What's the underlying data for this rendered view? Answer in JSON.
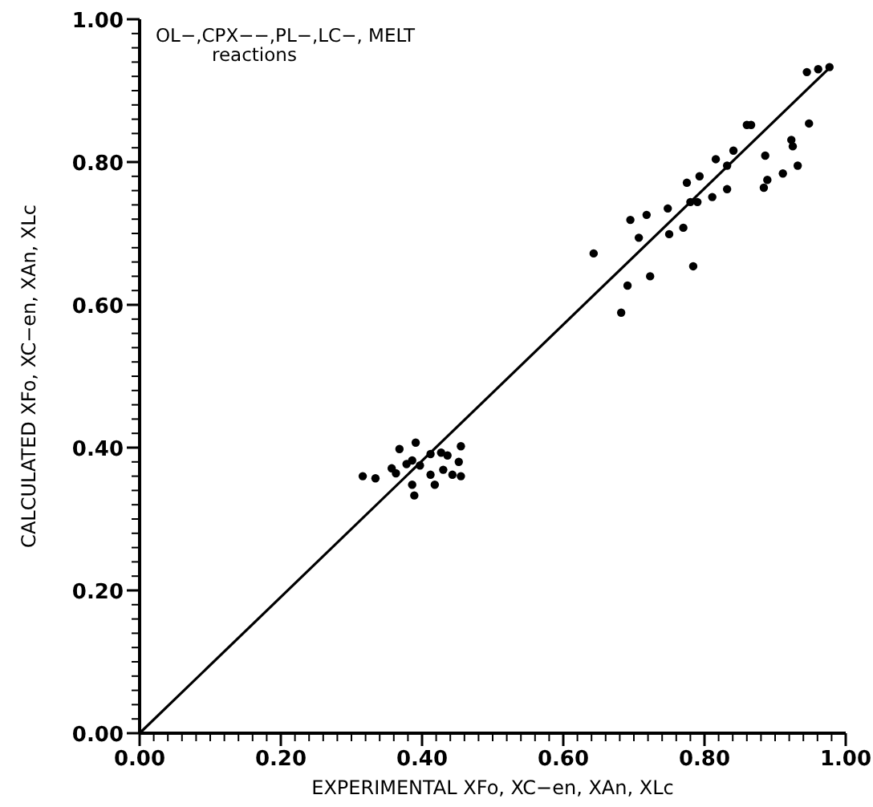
{
  "chart_data": {
    "type": "scatter",
    "title": "OL−,CPX−−,PL−,LC−,   MELT\nreactions",
    "xlabel": "EXPERIMENTAL  XFo,  XC−en,  XAn,  XLc",
    "ylabel": "CALCULATED  XFo,  XC−en,  XAn,  XLc",
    "xlim": [
      0,
      1
    ],
    "ylim": [
      0,
      1
    ],
    "xticks": [
      {
        "value": 0,
        "label": "0.00"
      },
      {
        "value": 0.2,
        "label": "0.20"
      },
      {
        "value": 0.4,
        "label": "0.40"
      },
      {
        "value": 0.6,
        "label": "0.60"
      },
      {
        "value": 0.8,
        "label": "0.80"
      },
      {
        "value": 1,
        "label": "1.00"
      }
    ],
    "yticks": [
      {
        "value": 0,
        "label": "0.00"
      },
      {
        "value": 0.2,
        "label": "0.20"
      },
      {
        "value": 0.4,
        "label": "0.40"
      },
      {
        "value": 0.6,
        "label": "0.60"
      },
      {
        "value": 0.8,
        "label": "0.80"
      },
      {
        "value": 1,
        "label": "1.00"
      }
    ],
    "grid": false,
    "series": [
      {
        "color": "#000000",
        "marker": "circle",
        "x": [
          0.316,
          0.334,
          0.368,
          0.391,
          0.357,
          0.363,
          0.378,
          0.386,
          0.397,
          0.412,
          0.427,
          0.455,
          0.452,
          0.43,
          0.443,
          0.455,
          0.412,
          0.418,
          0.389,
          0.386,
          0.436,
          0.643,
          0.682,
          0.691,
          0.723,
          0.784,
          0.707,
          0.695,
          0.718,
          0.748,
          0.75,
          0.77,
          0.78,
          0.79,
          0.811,
          0.832,
          0.775,
          0.793,
          0.816,
          0.832,
          0.841,
          0.866,
          0.886,
          0.884,
          0.889,
          0.911,
          0.932,
          0.923,
          0.925,
          0.948,
          0.945,
          0.961,
          0.977,
          0.86
        ],
        "values": [
          0.36,
          0.357,
          0.398,
          0.407,
          0.371,
          0.364,
          0.377,
          0.382,
          0.375,
          0.391,
          0.393,
          0.402,
          0.38,
          0.369,
          0.362,
          0.36,
          0.362,
          0.348,
          0.333,
          0.348,
          0.389,
          0.672,
          0.589,
          0.627,
          0.64,
          0.654,
          0.694,
          0.719,
          0.726,
          0.735,
          0.699,
          0.708,
          0.744,
          0.744,
          0.751,
          0.762,
          0.771,
          0.78,
          0.804,
          0.795,
          0.816,
          0.852,
          0.809,
          0.764,
          0.775,
          0.784,
          0.795,
          0.831,
          0.822,
          0.854,
          0.926,
          0.93,
          0.933,
          0.852
        ]
      },
      {
        "type": "line",
        "color": "#000000",
        "x": [
          0,
          0.975
        ],
        "values": [
          0,
          0.93
        ],
        "marker": "none"
      }
    ]
  }
}
